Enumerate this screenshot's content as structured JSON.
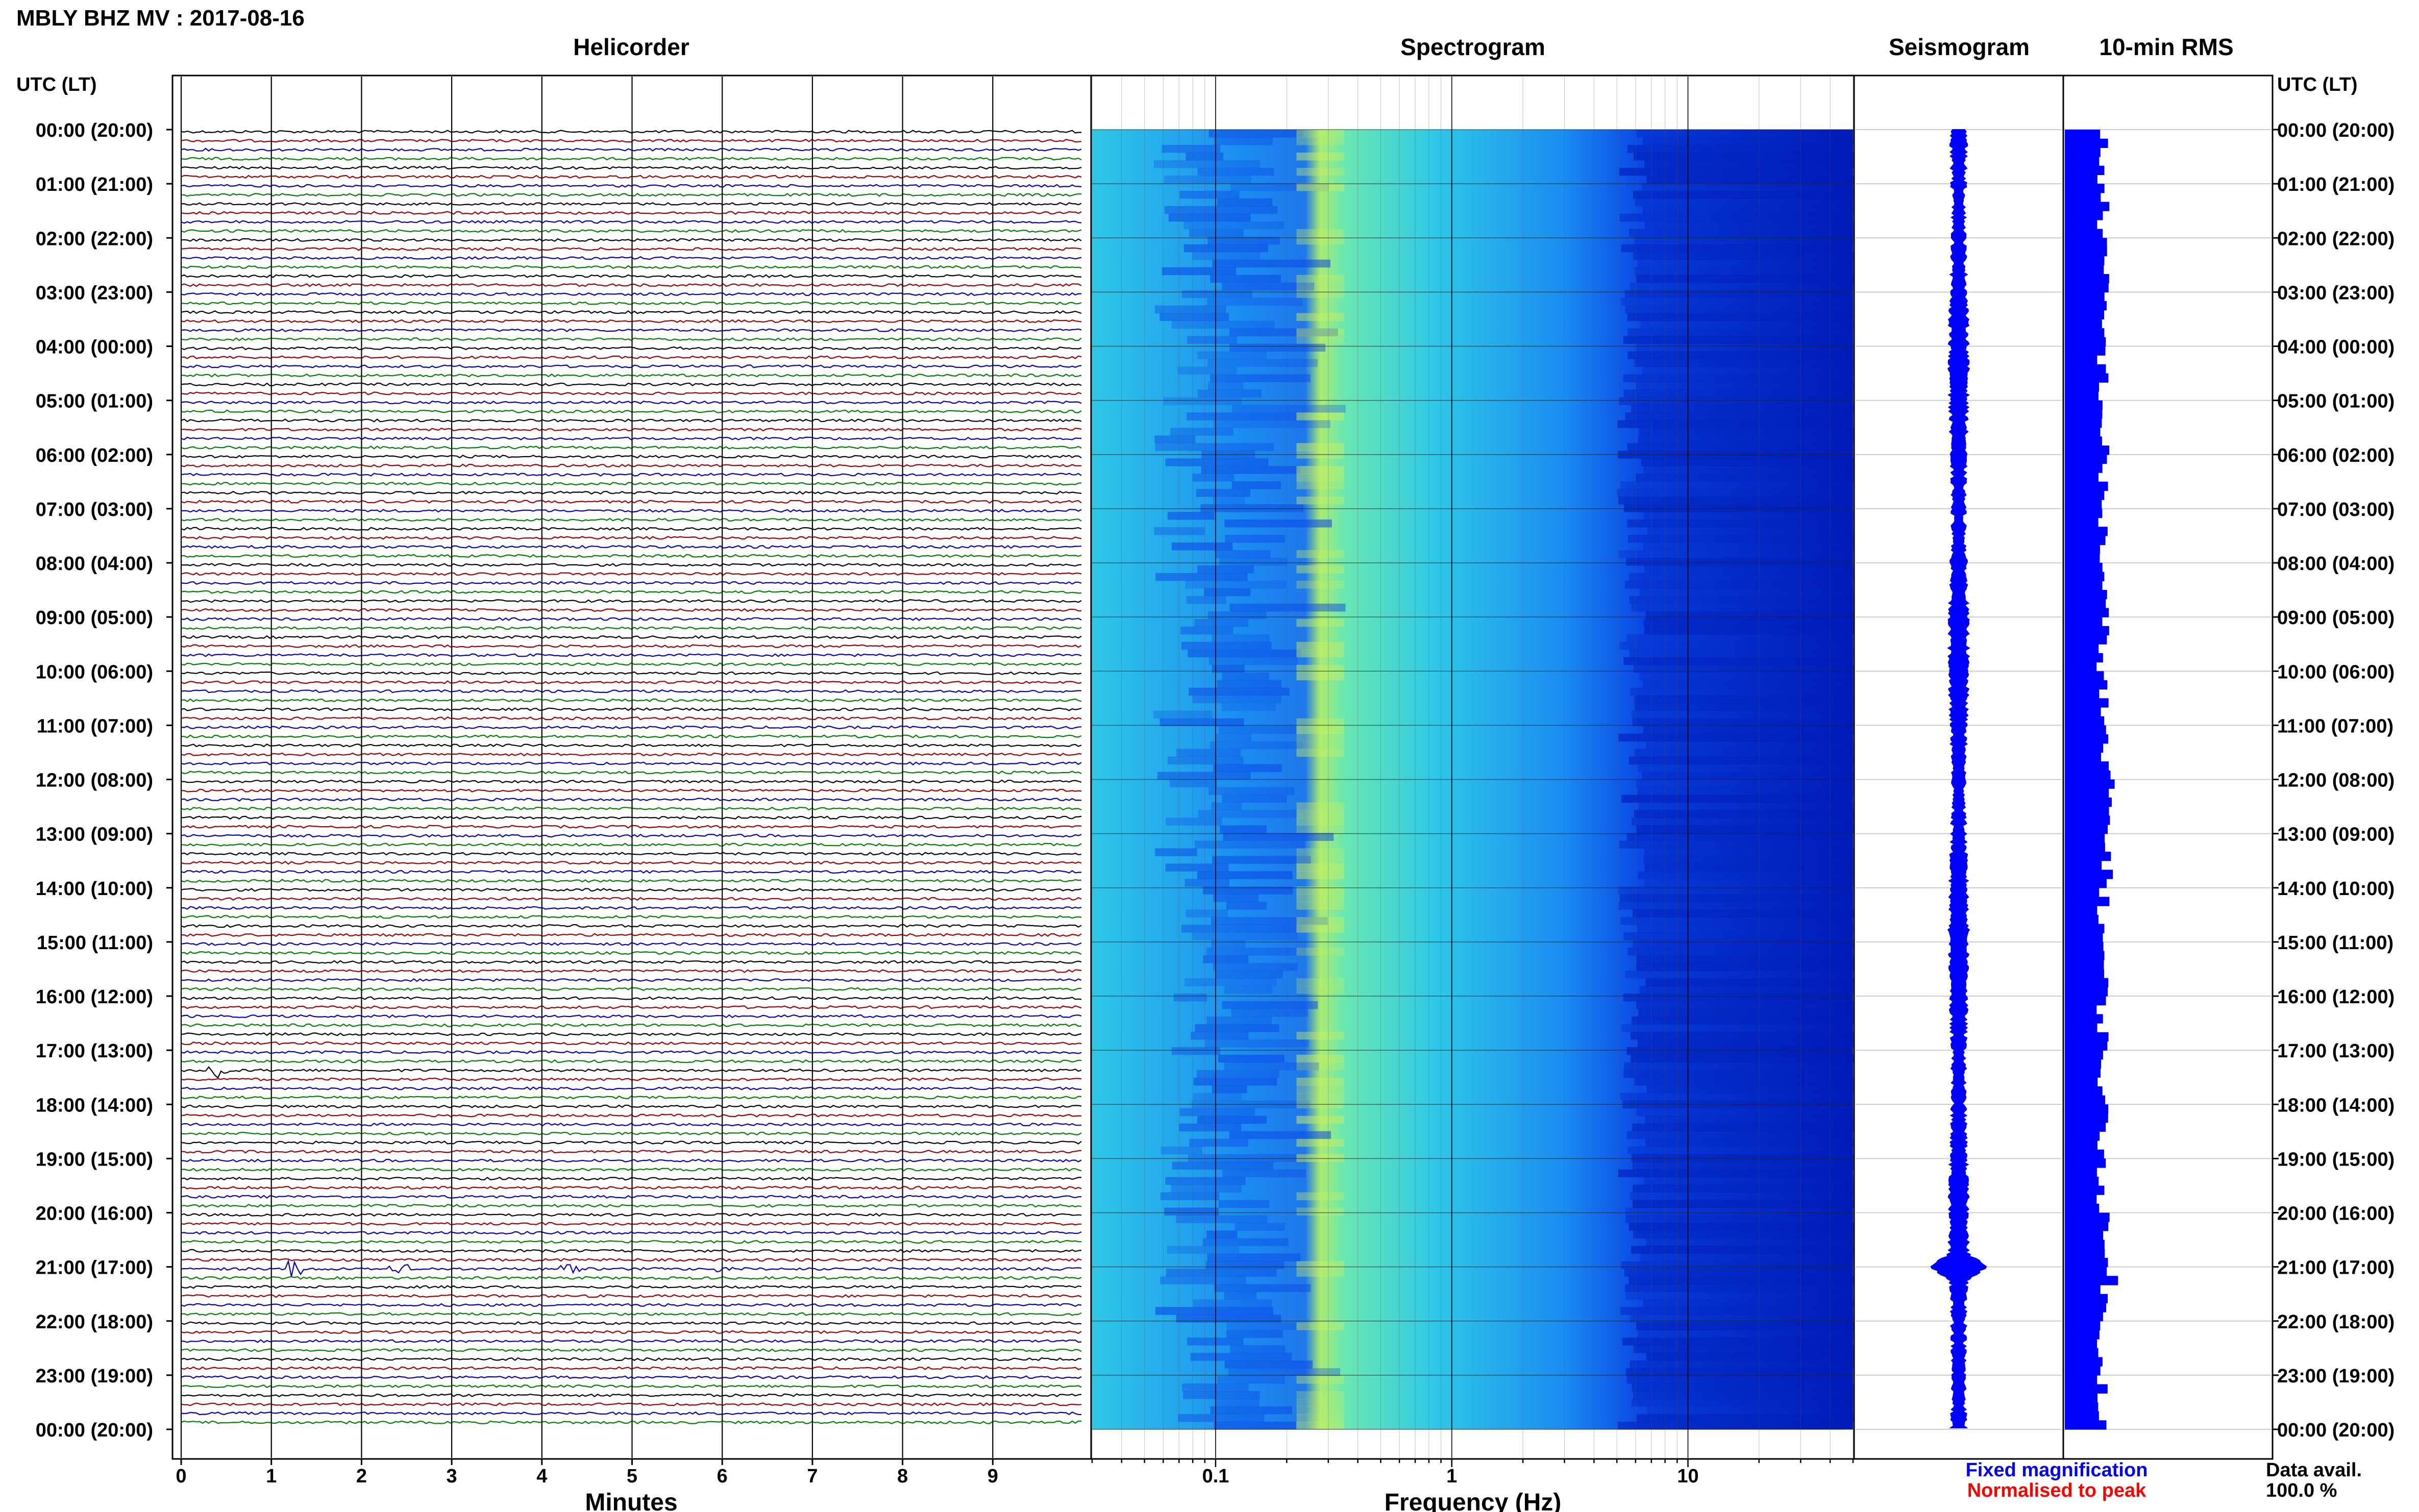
{
  "header": {
    "station_title": "MBLY BHZ MV : 2017-08-16"
  },
  "panels": {
    "helicorder_title": "Helicorder",
    "spectrogram_title": "Spectrogram",
    "seismogram_title": "Seismogram",
    "rms_title": "10-min RMS"
  },
  "time_axis": {
    "label_left": "UTC (LT)",
    "label_right": "UTC (LT)",
    "ticks": [
      "00:00 (20:00)",
      "01:00 (21:00)",
      "02:00 (22:00)",
      "03:00 (23:00)",
      "04:00 (00:00)",
      "05:00 (01:00)",
      "06:00 (02:00)",
      "07:00 (03:00)",
      "08:00 (04:00)",
      "09:00 (05:00)",
      "10:00 (06:00)",
      "11:00 (07:00)",
      "12:00 (08:00)",
      "13:00 (09:00)",
      "14:00 (10:00)",
      "15:00 (11:00)",
      "16:00 (12:00)",
      "17:00 (13:00)",
      "18:00 (14:00)",
      "19:00 (15:00)",
      "20:00 (16:00)",
      "21:00 (17:00)",
      "22:00 (18:00)",
      "23:00 (19:00)",
      "00:00 (20:00)"
    ]
  },
  "legend": {
    "fixed": "Fixed magnification",
    "normalised": "Normalised to peak",
    "fixed_color": "#0000ff",
    "normalised_color": "#ff0000"
  },
  "data_availability": {
    "label": "Data avail.",
    "value": "100.0 %"
  },
  "chart_data": {
    "type": "heatmap",
    "helicorder": {
      "xlabel": "Minutes",
      "x_ticks": [
        "0",
        "1",
        "2",
        "3",
        "4",
        "5",
        "6",
        "7",
        "8",
        "9"
      ],
      "xlim": [
        0,
        10
      ],
      "lines_per_hour": 6,
      "trace_colors": [
        "#000000",
        "#a00000",
        "#0000c0",
        "#008000"
      ],
      "events": [
        {
          "hour": 17,
          "trace": 2,
          "minute": 0.4,
          "amplitude": 1.0
        },
        {
          "hour": 21,
          "trace": 0,
          "minute": 1.3,
          "amplitude": 0.9
        },
        {
          "hour": 21,
          "trace": 0,
          "minute": 2.4,
          "amplitude": 0.6
        },
        {
          "hour": 21,
          "trace": 0,
          "minute": 4.3,
          "amplitude": 0.5
        },
        {
          "hour": 21,
          "trace": 0,
          "minute": 6.0,
          "amplitude": 0.4
        }
      ]
    },
    "spectrogram": {
      "xlabel": "Frequency (Hz)",
      "x_scale": "log",
      "x_ticks": [
        "0.1",
        "1",
        "10"
      ],
      "xlim": [
        0.03,
        50
      ],
      "colormap": [
        "#001cb8",
        "#0a48e6",
        "#1a8cf0",
        "#2ec8e8",
        "#5ce8c0",
        "#c8f060"
      ]
    },
    "seismogram": {
      "peak_hour": 21.0,
      "baseline": 0.15
    },
    "rms": {
      "bins_per_hour": 6,
      "peak_hour": 21.0
    }
  }
}
